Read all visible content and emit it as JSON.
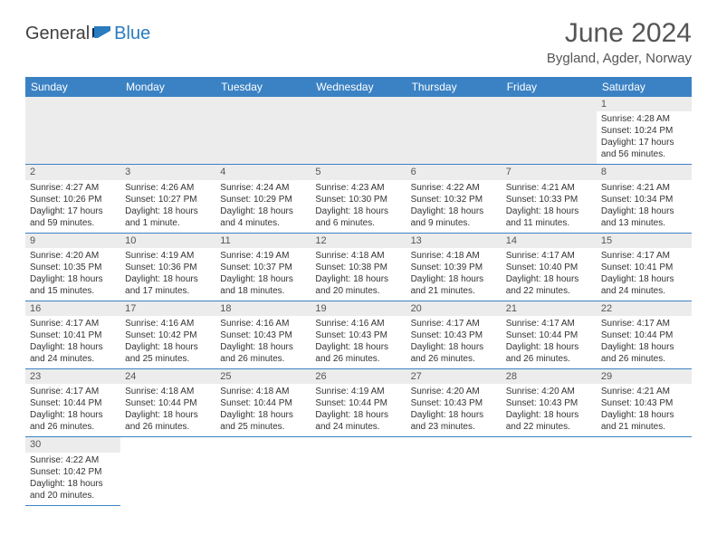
{
  "brand": {
    "general": "General",
    "blue": "Blue"
  },
  "title": "June 2024",
  "location": "Bygland, Agder, Norway",
  "colors": {
    "header_bg": "#3b82c4",
    "header_text": "#ffffff",
    "daynum_bg": "#ececec",
    "cell_border": "#3b82c4",
    "text": "#333333",
    "title_text": "#555555"
  },
  "weekdays": [
    "Sunday",
    "Monday",
    "Tuesday",
    "Wednesday",
    "Thursday",
    "Friday",
    "Saturday"
  ],
  "weeks": [
    [
      null,
      null,
      null,
      null,
      null,
      null,
      {
        "n": "1",
        "sunrise": "Sunrise: 4:28 AM",
        "sunset": "Sunset: 10:24 PM",
        "daylight": "Daylight: 17 hours and 56 minutes."
      }
    ],
    [
      {
        "n": "2",
        "sunrise": "Sunrise: 4:27 AM",
        "sunset": "Sunset: 10:26 PM",
        "daylight": "Daylight: 17 hours and 59 minutes."
      },
      {
        "n": "3",
        "sunrise": "Sunrise: 4:26 AM",
        "sunset": "Sunset: 10:27 PM",
        "daylight": "Daylight: 18 hours and 1 minute."
      },
      {
        "n": "4",
        "sunrise": "Sunrise: 4:24 AM",
        "sunset": "Sunset: 10:29 PM",
        "daylight": "Daylight: 18 hours and 4 minutes."
      },
      {
        "n": "5",
        "sunrise": "Sunrise: 4:23 AM",
        "sunset": "Sunset: 10:30 PM",
        "daylight": "Daylight: 18 hours and 6 minutes."
      },
      {
        "n": "6",
        "sunrise": "Sunrise: 4:22 AM",
        "sunset": "Sunset: 10:32 PM",
        "daylight": "Daylight: 18 hours and 9 minutes."
      },
      {
        "n": "7",
        "sunrise": "Sunrise: 4:21 AM",
        "sunset": "Sunset: 10:33 PM",
        "daylight": "Daylight: 18 hours and 11 minutes."
      },
      {
        "n": "8",
        "sunrise": "Sunrise: 4:21 AM",
        "sunset": "Sunset: 10:34 PM",
        "daylight": "Daylight: 18 hours and 13 minutes."
      }
    ],
    [
      {
        "n": "9",
        "sunrise": "Sunrise: 4:20 AM",
        "sunset": "Sunset: 10:35 PM",
        "daylight": "Daylight: 18 hours and 15 minutes."
      },
      {
        "n": "10",
        "sunrise": "Sunrise: 4:19 AM",
        "sunset": "Sunset: 10:36 PM",
        "daylight": "Daylight: 18 hours and 17 minutes."
      },
      {
        "n": "11",
        "sunrise": "Sunrise: 4:19 AM",
        "sunset": "Sunset: 10:37 PM",
        "daylight": "Daylight: 18 hours and 18 minutes."
      },
      {
        "n": "12",
        "sunrise": "Sunrise: 4:18 AM",
        "sunset": "Sunset: 10:38 PM",
        "daylight": "Daylight: 18 hours and 20 minutes."
      },
      {
        "n": "13",
        "sunrise": "Sunrise: 4:18 AM",
        "sunset": "Sunset: 10:39 PM",
        "daylight": "Daylight: 18 hours and 21 minutes."
      },
      {
        "n": "14",
        "sunrise": "Sunrise: 4:17 AM",
        "sunset": "Sunset: 10:40 PM",
        "daylight": "Daylight: 18 hours and 22 minutes."
      },
      {
        "n": "15",
        "sunrise": "Sunrise: 4:17 AM",
        "sunset": "Sunset: 10:41 PM",
        "daylight": "Daylight: 18 hours and 24 minutes."
      }
    ],
    [
      {
        "n": "16",
        "sunrise": "Sunrise: 4:17 AM",
        "sunset": "Sunset: 10:41 PM",
        "daylight": "Daylight: 18 hours and 24 minutes."
      },
      {
        "n": "17",
        "sunrise": "Sunrise: 4:16 AM",
        "sunset": "Sunset: 10:42 PM",
        "daylight": "Daylight: 18 hours and 25 minutes."
      },
      {
        "n": "18",
        "sunrise": "Sunrise: 4:16 AM",
        "sunset": "Sunset: 10:43 PM",
        "daylight": "Daylight: 18 hours and 26 minutes."
      },
      {
        "n": "19",
        "sunrise": "Sunrise: 4:16 AM",
        "sunset": "Sunset: 10:43 PM",
        "daylight": "Daylight: 18 hours and 26 minutes."
      },
      {
        "n": "20",
        "sunrise": "Sunrise: 4:17 AM",
        "sunset": "Sunset: 10:43 PM",
        "daylight": "Daylight: 18 hours and 26 minutes."
      },
      {
        "n": "21",
        "sunrise": "Sunrise: 4:17 AM",
        "sunset": "Sunset: 10:44 PM",
        "daylight": "Daylight: 18 hours and 26 minutes."
      },
      {
        "n": "22",
        "sunrise": "Sunrise: 4:17 AM",
        "sunset": "Sunset: 10:44 PM",
        "daylight": "Daylight: 18 hours and 26 minutes."
      }
    ],
    [
      {
        "n": "23",
        "sunrise": "Sunrise: 4:17 AM",
        "sunset": "Sunset: 10:44 PM",
        "daylight": "Daylight: 18 hours and 26 minutes."
      },
      {
        "n": "24",
        "sunrise": "Sunrise: 4:18 AM",
        "sunset": "Sunset: 10:44 PM",
        "daylight": "Daylight: 18 hours and 26 minutes."
      },
      {
        "n": "25",
        "sunrise": "Sunrise: 4:18 AM",
        "sunset": "Sunset: 10:44 PM",
        "daylight": "Daylight: 18 hours and 25 minutes."
      },
      {
        "n": "26",
        "sunrise": "Sunrise: 4:19 AM",
        "sunset": "Sunset: 10:44 PM",
        "daylight": "Daylight: 18 hours and 24 minutes."
      },
      {
        "n": "27",
        "sunrise": "Sunrise: 4:20 AM",
        "sunset": "Sunset: 10:43 PM",
        "daylight": "Daylight: 18 hours and 23 minutes."
      },
      {
        "n": "28",
        "sunrise": "Sunrise: 4:20 AM",
        "sunset": "Sunset: 10:43 PM",
        "daylight": "Daylight: 18 hours and 22 minutes."
      },
      {
        "n": "29",
        "sunrise": "Sunrise: 4:21 AM",
        "sunset": "Sunset: 10:43 PM",
        "daylight": "Daylight: 18 hours and 21 minutes."
      }
    ],
    [
      {
        "n": "30",
        "sunrise": "Sunrise: 4:22 AM",
        "sunset": "Sunset: 10:42 PM",
        "daylight": "Daylight: 18 hours and 20 minutes."
      },
      null,
      null,
      null,
      null,
      null,
      null
    ]
  ]
}
